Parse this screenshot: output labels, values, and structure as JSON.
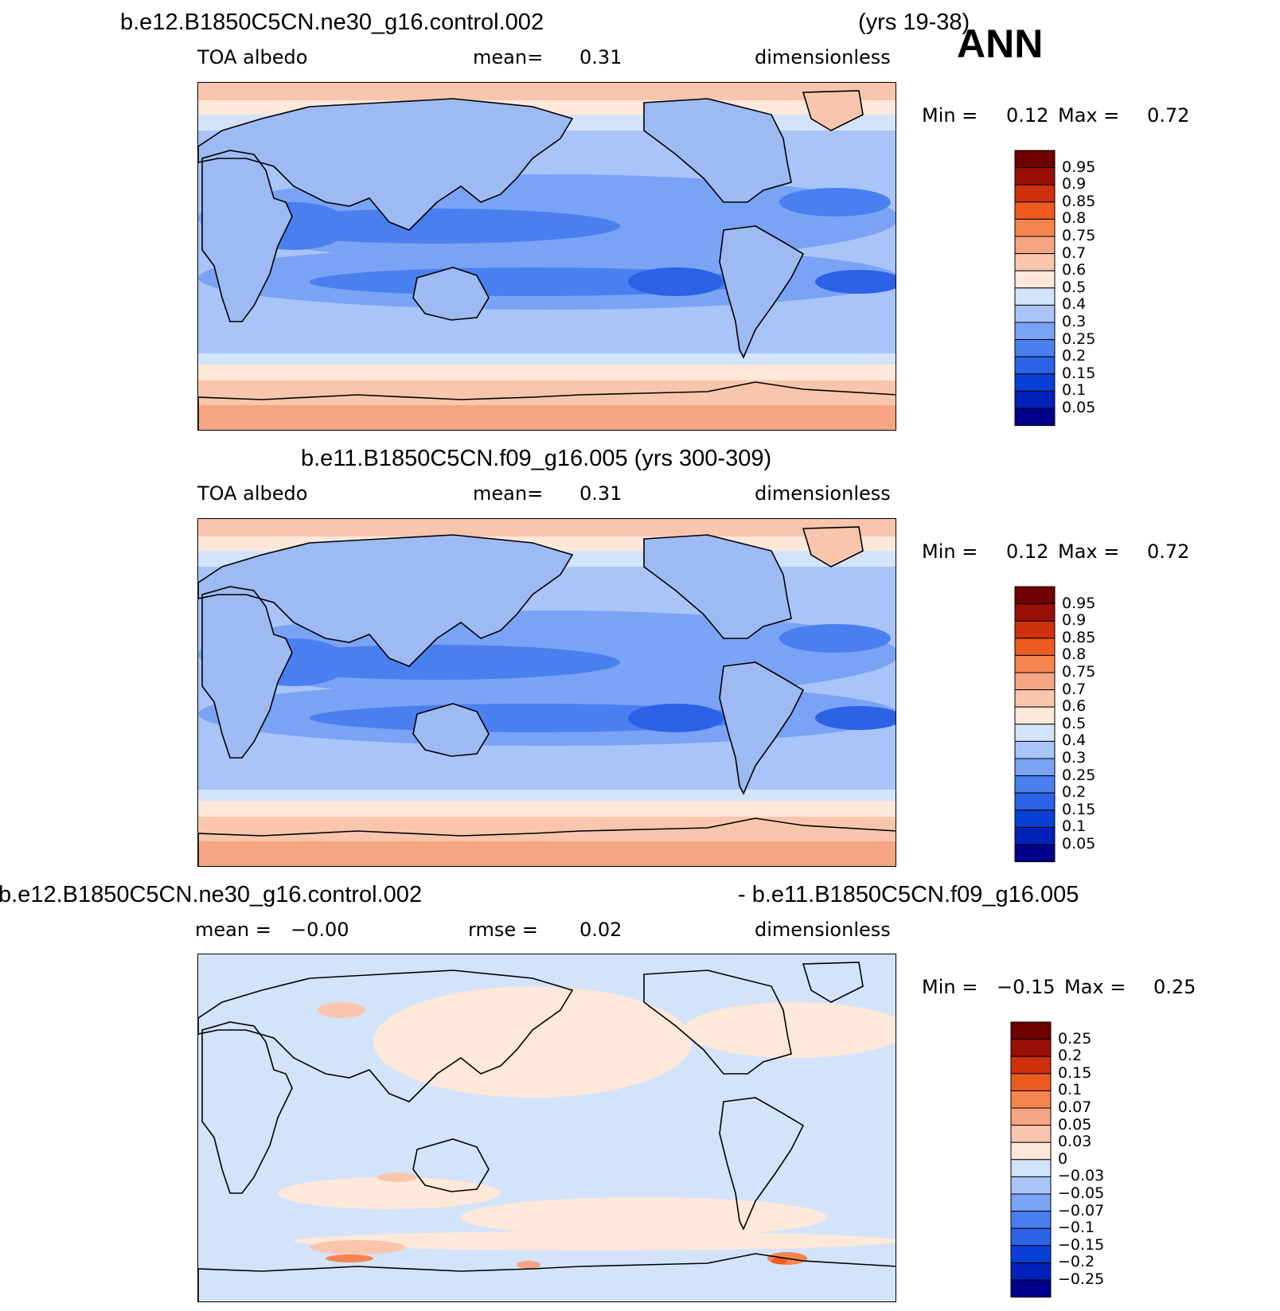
{
  "season": "ANN",
  "panels": [
    {
      "id": "top",
      "title_left": "b.e12.B1850C5CN.ne30_g16.control.002",
      "title_right": "(yrs 19-38)",
      "sub_left": "TOA  albedo",
      "sub_mid_label": "mean=",
      "sub_mid_value": "0.31",
      "sub_right": "dimensionless",
      "minmax": {
        "min_label": "Min  =",
        "min_value": "0.12",
        "max_label": "Max  =",
        "max_value": "0.72"
      },
      "colorbar_labels": [
        "0.95",
        "0.9",
        "0.85",
        "0.8",
        "0.75",
        "0.7",
        "0.6",
        "0.5",
        "0.4",
        "0.3",
        "0.25",
        "0.2",
        "0.15",
        "0.1",
        "0.05"
      ]
    },
    {
      "id": "middle",
      "title_center": "b.e11.B1850C5CN.f09_g16.005 (yrs 300-309)",
      "sub_left": "TOA  albedo",
      "sub_mid_label": "mean=",
      "sub_mid_value": "0.31",
      "sub_right": "dimensionless",
      "minmax": {
        "min_label": "Min  =",
        "min_value": "0.12",
        "max_label": "Max  =",
        "max_value": "0.72"
      },
      "colorbar_labels": [
        "0.95",
        "0.9",
        "0.85",
        "0.8",
        "0.75",
        "0.7",
        "0.6",
        "0.5",
        "0.4",
        "0.3",
        "0.25",
        "0.2",
        "0.15",
        "0.1",
        "0.05"
      ]
    },
    {
      "id": "bottom",
      "title_left": "b.e12.B1850C5CN.ne30_g16.control.002",
      "title_right": "- b.e11.B1850C5CN.f09_g16.005",
      "sub_left_label": "mean  =",
      "sub_left_value": "−0.00",
      "sub_mid_label": "rmse  =",
      "sub_mid_value": "0.02",
      "sub_right": "dimensionless",
      "minmax": {
        "min_label": "Min  =",
        "min_value": "−0.15",
        "max_label": "Max  =",
        "max_value": "0.25"
      },
      "colorbar_labels": [
        "0.25",
        "0.2",
        "0.15",
        "0.1",
        "0.07",
        "0.05",
        "0.03",
        "0",
        "−0.03",
        "−0.05",
        "−0.07",
        "−0.1",
        "−0.15",
        "−0.2",
        "−0.25"
      ]
    }
  ],
  "colors": {
    "seq": [
      "#00008b",
      "#0022b8",
      "#0a40d8",
      "#2b62e6",
      "#4a7ff0",
      "#7aa3f5",
      "#a9c4f8",
      "#d3e3fa",
      "#fde8da",
      "#f9c6ad",
      "#f6a583",
      "#f4854f",
      "#ec5b20",
      "#cf300e",
      "#9a0f06",
      "#6e0000"
    ],
    "land_albedo": "#9dbaf2",
    "coast": "#000000"
  }
}
